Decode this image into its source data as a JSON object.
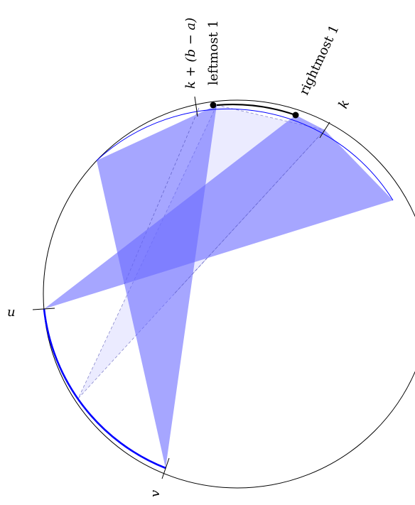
{
  "labels": {
    "u": "u",
    "v": "v",
    "k": "k",
    "k_plus": "k + (b − a)",
    "leftmost": "leftmost 1",
    "rightmost": "rightmost 1"
  },
  "colors": {
    "fill_dark": "#8c8cff",
    "fill_light": "#e8e8ff",
    "arc_blue": "#0000ff",
    "outline": "#000000"
  }
}
